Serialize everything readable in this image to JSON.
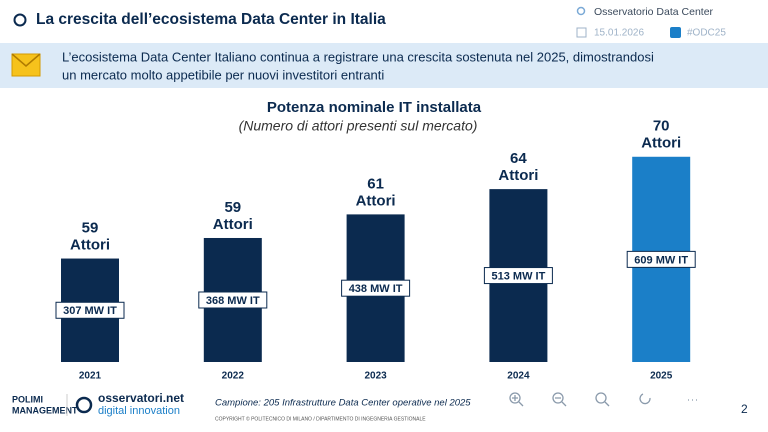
{
  "header": {
    "title": "La crescita dell’ecosistema Data Center in Italia",
    "source": "Osservatorio Data Center",
    "date": "15.01.2026",
    "hashtag": "#ODC25"
  },
  "banner": {
    "lines": [
      "L’ecosistema Data Center Italiano continua a registrare una crescita sostenuta nel 2025, dimostrandosi",
      "un mercato molto appetibile per nuovi investitori entranti"
    ]
  },
  "chart_data": {
    "type": "bar",
    "title": "Potenza nominale IT installata",
    "subtitle": "(Numero di attori presenti sul mercato)",
    "categories": [
      "2021",
      "2022",
      "2023",
      "2024",
      "2025"
    ],
    "values": [
      307,
      368,
      438,
      513,
      609
    ],
    "value_labels": [
      "307 MW IT",
      "368 MW IT",
      "438 MW IT",
      "513 MW IT",
      "609 MW IT"
    ],
    "actors": [
      59,
      59,
      61,
      64,
      70
    ],
    "actors_label": "Attori",
    "colors": [
      "#0b2a4f",
      "#0b2a4f",
      "#0b2a4f",
      "#0b2a4f",
      "#1b7fc8"
    ]
  },
  "footer": {
    "sample": "Campione: 205 Infrastrutture Data Center operative nel 2025",
    "copyright": "COPYRIGHT © POLITECNICO DI MILANO / DIPARTIMENTO DI INGEGNERIA GESTIONALE",
    "page": "2",
    "logo_left": [
      "POLIMI",
      "MANAGEMENT"
    ],
    "logo_right": [
      "osservatori.net",
      "digital innovation"
    ]
  }
}
